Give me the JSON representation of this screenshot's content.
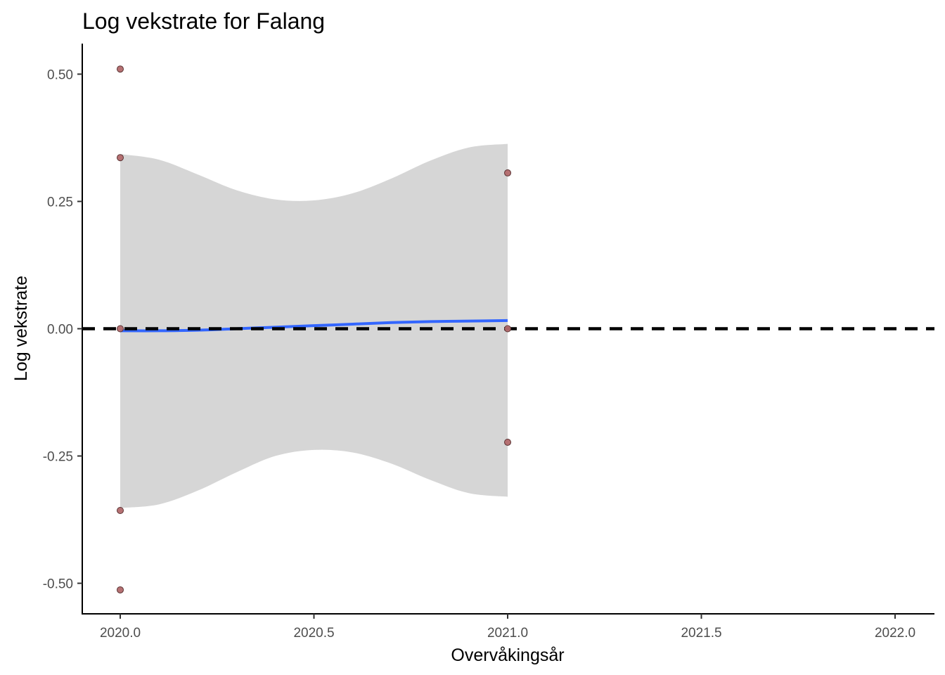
{
  "chart_data": {
    "type": "scatter",
    "title": "Log vekstrate for Falang",
    "xlabel": "Overvåkingsår",
    "ylabel": "Log vekstrate",
    "xlim": [
      1999.9,
      2022.1
    ],
    "ylim": [
      -0.56,
      0.56
    ],
    "x_ticks": [
      2020.0,
      2020.5,
      2021.0,
      2021.5,
      2022.0
    ],
    "x_tick_labels": [
      "2020.0",
      "2020.5",
      "2021.0",
      "2021.5",
      "2022.0"
    ],
    "y_ticks": [
      -0.5,
      -0.25,
      0.0,
      0.25,
      0.5
    ],
    "y_tick_labels": [
      "-0.50",
      "-0.25",
      "0.00",
      "0.25",
      "0.50"
    ],
    "grid": false,
    "points": {
      "color": "#b2696b",
      "x": [
        2020.0,
        2020.0,
        2020.0,
        2020.0,
        2020.0,
        2021.0,
        2021.0,
        2021.0
      ],
      "y": [
        0.51,
        0.336,
        0.0,
        -0.357,
        -0.513,
        0.306,
        0.0,
        -0.223
      ]
    },
    "trend": {
      "color": "#3366ff",
      "x": [
        2020.0,
        2020.1,
        2020.2,
        2020.3,
        2020.4,
        2020.5,
        2020.6,
        2020.7,
        2020.8,
        2020.9,
        2021.0
      ],
      "y": [
        -0.004,
        -0.004,
        -0.003,
        0.0,
        0.003,
        0.006,
        0.009,
        0.012,
        0.014,
        0.015,
        0.016
      ]
    },
    "confidence_band": {
      "color": "#d6d6d6",
      "x": [
        2020.0,
        2020.1,
        2020.2,
        2020.3,
        2020.4,
        2020.5,
        2020.6,
        2020.7,
        2020.8,
        2020.9,
        2021.0
      ],
      "upper": [
        0.343,
        0.332,
        0.303,
        0.272,
        0.254,
        0.252,
        0.266,
        0.295,
        0.33,
        0.356,
        0.363
      ],
      "lower": [
        -0.352,
        -0.345,
        -0.318,
        -0.282,
        -0.25,
        -0.238,
        -0.243,
        -0.265,
        -0.297,
        -0.323,
        -0.33
      ]
    },
    "reference_line": {
      "y": 0.0,
      "style": "dashed",
      "color": "#000000"
    }
  }
}
